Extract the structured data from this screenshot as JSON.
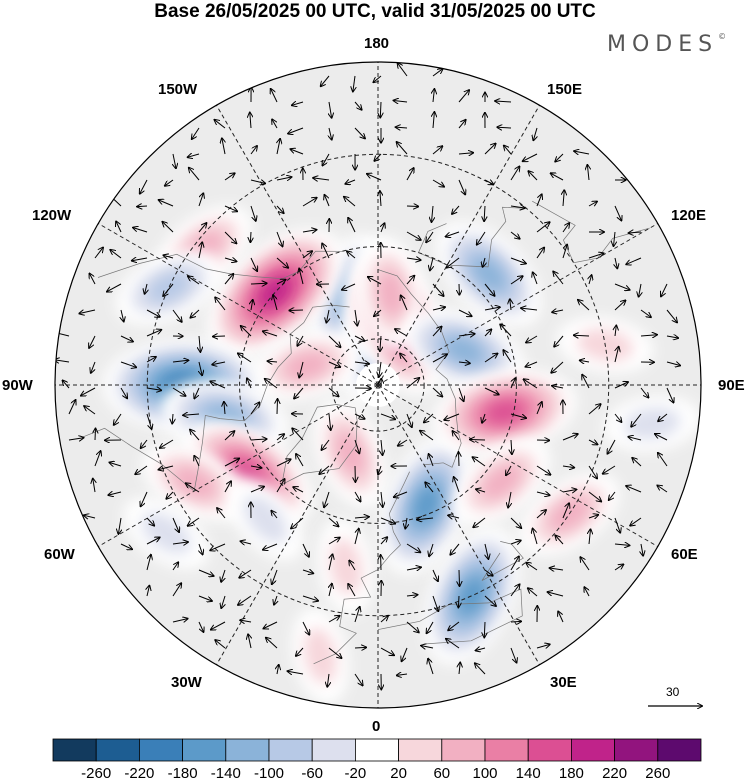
{
  "title": "Base 26/05/2025 00 UTC, valid 31/05/2025 00 UTC",
  "logo": "MODES",
  "logo_mark": "©",
  "longitude_labels": {
    "top": "180",
    "bottom": "0",
    "left": "90W",
    "right": "90E",
    "upper_left_inner": "150W",
    "upper_left_outer": "120W",
    "upper_right_inner": "150E",
    "upper_right_outer": "120E",
    "lower_left_outer": "60W",
    "lower_left_inner": "30W",
    "lower_right_outer": "60E",
    "lower_right_inner": "30E"
  },
  "vector_scale": {
    "label": "30"
  },
  "colorbar": {
    "labels": [
      "-260",
      "-220",
      "-180",
      "-140",
      "-100",
      "-60",
      "-20",
      "20",
      "60",
      "100",
      "140",
      "180",
      "220",
      "260"
    ],
    "colors": [
      "#123a5e",
      "#1d5d92",
      "#3a7fb8",
      "#5c9ac9",
      "#8bb3d9",
      "#b7c9e6",
      "#dde0ee",
      "#ffffff",
      "#f7d7dc",
      "#f2b0c2",
      "#ea7fa5",
      "#dc4f93",
      "#c0238a",
      "#92147e",
      "#5d0a6e"
    ]
  },
  "anomaly_features": [
    {
      "sign": "negative",
      "level": 3,
      "lat": 70,
      "lon": -162
    },
    {
      "sign": "negative",
      "level": 2,
      "lat": 82,
      "lon": -170
    },
    {
      "sign": "positive",
      "level": 2,
      "lat": 72,
      "lon": -178
    },
    {
      "sign": "positive",
      "level": 4,
      "lat": 76,
      "lon": 160
    },
    {
      "sign": "positive",
      "level": 2,
      "lat": 70,
      "lon": 172
    },
    {
      "sign": "negative",
      "level": 3,
      "lat": 56,
      "lon": 135
    },
    {
      "sign": "negative",
      "level": 3,
      "lat": 70,
      "lon": 112
    },
    {
      "sign": "positive",
      "level": 5,
      "lat": 60,
      "lon": -132
    },
    {
      "sign": "positive",
      "level": 2,
      "lat": 42,
      "lon": -128
    },
    {
      "sign": "positive",
      "level": 2,
      "lat": 74,
      "lon": -105
    },
    {
      "sign": "negative",
      "level": 5,
      "lat": 48,
      "lon": -90
    },
    {
      "sign": "negative",
      "level": 3,
      "lat": 56,
      "lon": -78
    },
    {
      "sign": "positive",
      "level": 4,
      "lat": 56,
      "lon": -56
    },
    {
      "sign": "positive",
      "level": 2,
      "lat": 45,
      "lon": -62
    },
    {
      "sign": "positive",
      "level": 2,
      "lat": 74,
      "lon": -22
    },
    {
      "sign": "negative",
      "level": 1,
      "lat": 52,
      "lon": -40
    },
    {
      "sign": "negative",
      "level": 1,
      "lat": 34,
      "lon": -55
    },
    {
      "sign": "negative",
      "level": 4,
      "lat": 62,
      "lon": 22
    },
    {
      "sign": "negative",
      "level": 4,
      "lat": 40,
      "lon": 24
    },
    {
      "sign": "positive",
      "level": 4,
      "lat": 62,
      "lon": 78
    },
    {
      "sign": "positive",
      "level": 2,
      "lat": 56,
      "lon": 52
    },
    {
      "sign": "positive",
      "level": 2,
      "lat": 40,
      "lon": 56
    },
    {
      "sign": "positive",
      "level": 1,
      "lat": 40,
      "lon": 100
    },
    {
      "sign": "negative",
      "level": 1,
      "lat": 30,
      "lon": 82
    },
    {
      "sign": "positive",
      "level": 1,
      "lat": 30,
      "lon": -12
    },
    {
      "sign": "positive",
      "level": 1,
      "lat": 50,
      "lon": -10
    },
    {
      "sign": "negative",
      "level": 2,
      "lat": 40,
      "lon": -115
    }
  ]
}
